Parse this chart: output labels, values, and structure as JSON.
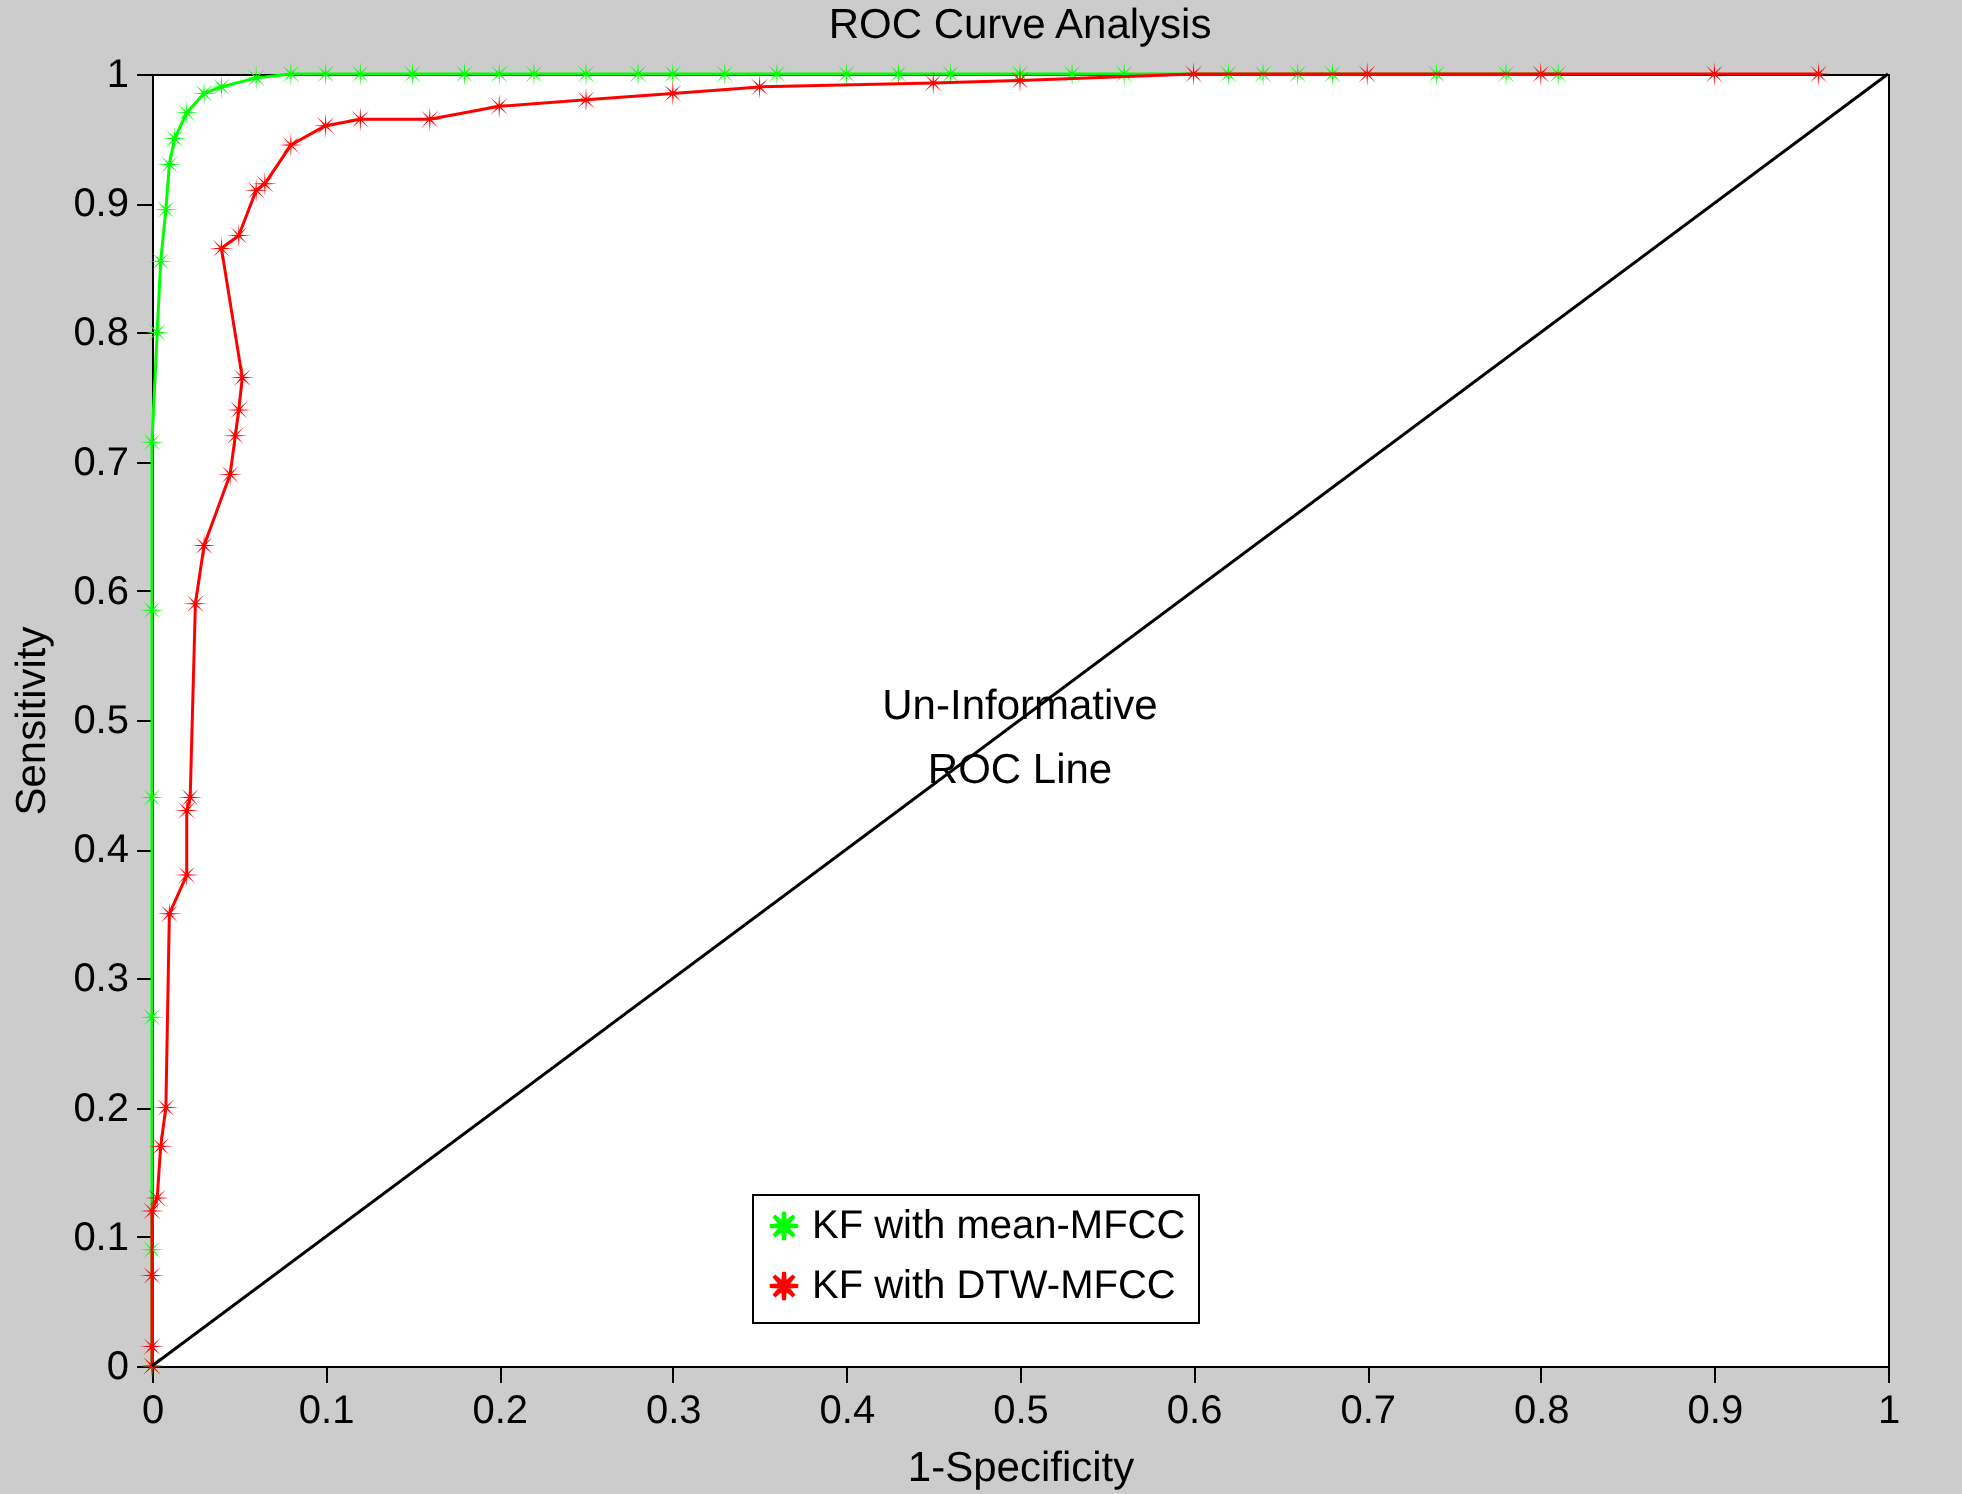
{
  "chart_data": {
    "type": "line",
    "title": "ROC Curve Analysis",
    "xlabel": "1-Specificity",
    "ylabel": "Sensitivity",
    "xlim": [
      0,
      1
    ],
    "ylim": [
      0,
      1
    ],
    "xticks": [
      0,
      0.1,
      0.2,
      0.3,
      0.4,
      0.5,
      0.6,
      0.7,
      0.8,
      0.9,
      1
    ],
    "yticks": [
      0,
      0.1,
      0.2,
      0.3,
      0.4,
      0.5,
      0.6,
      0.7,
      0.8,
      0.9,
      1
    ],
    "grid": false,
    "legend": "bottom",
    "marker": "cross",
    "line_style": "solid",
    "annotations": [
      {
        "text": "Un-Informative\nROC Line",
        "x": 0.5,
        "y": 0.51
      }
    ],
    "series": [
      {
        "name": "KF with mean-MFCC",
        "color": "#00ff00",
        "x": [
          0,
          0,
          0,
          0,
          0,
          0,
          0.003,
          0.005,
          0.008,
          0.01,
          0.013,
          0.02,
          0.03,
          0.04,
          0.06,
          0.08,
          0.1,
          0.12,
          0.15,
          0.18,
          0.2,
          0.22,
          0.25,
          0.28,
          0.3,
          0.33,
          0.36,
          0.4,
          0.43,
          0.46,
          0.5,
          0.53,
          0.56,
          0.62,
          0.64,
          0.66,
          0.68,
          0.74,
          0.78,
          0.81
        ],
        "values": [
          0,
          0.09,
          0.27,
          0.44,
          0.585,
          0.715,
          0.8,
          0.855,
          0.895,
          0.93,
          0.95,
          0.97,
          0.985,
          0.99,
          0.997,
          1,
          1,
          1,
          1,
          1,
          1,
          1,
          1,
          1,
          1,
          1,
          1,
          1,
          1,
          1,
          1,
          1,
          1,
          1,
          1,
          1,
          1,
          1,
          1,
          1
        ]
      },
      {
        "name": "KF with DTW-MFCC",
        "color": "#ff0000",
        "x": [
          0,
          0,
          0,
          0,
          0.003,
          0.005,
          0.008,
          0.01,
          0.02,
          0.02,
          0.022,
          0.025,
          0.03,
          0.045,
          0.048,
          0.05,
          0.052,
          0.04,
          0.05,
          0.06,
          0.065,
          0.08,
          0.1,
          0.12,
          0.16,
          0.2,
          0.25,
          0.3,
          0.35,
          0.45,
          0.5,
          0.6,
          0.7,
          0.8,
          0.9,
          0.96
        ],
        "values": [
          0,
          0.015,
          0.07,
          0.12,
          0.13,
          0.17,
          0.2,
          0.35,
          0.38,
          0.43,
          0.44,
          0.59,
          0.635,
          0.69,
          0.72,
          0.74,
          0.765,
          0.865,
          0.875,
          0.91,
          0.915,
          0.945,
          0.96,
          0.965,
          0.965,
          0.975,
          0.98,
          0.985,
          0.99,
          0.993,
          0.995,
          1,
          1,
          1,
          1,
          1
        ]
      },
      {
        "color": "#000000",
        "marker": "none",
        "x": [
          0,
          1
        ],
        "values": [
          0,
          1
        ]
      }
    ]
  }
}
